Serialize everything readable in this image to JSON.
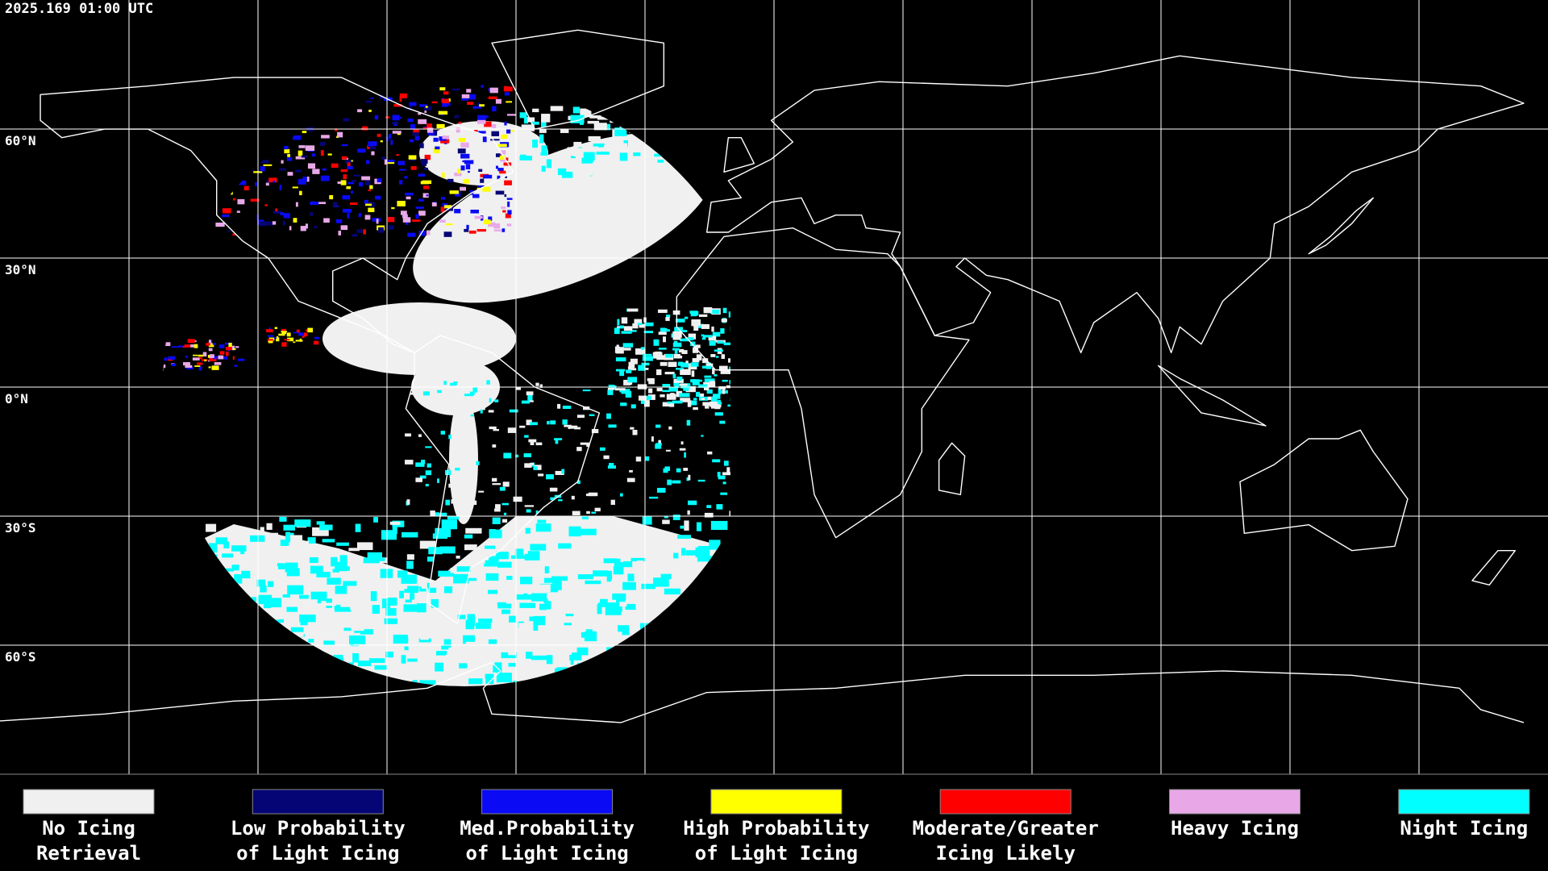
{
  "header": {
    "timestamp": "2025.169 01:00 UTC"
  },
  "map": {
    "latitude_labels": [
      "60°N",
      "30°N",
      "0°N",
      "30°S",
      "60°S"
    ]
  },
  "legend": {
    "items": [
      {
        "label": [
          "No Icing",
          "Retrieval"
        ],
        "color": "#f0f0f0"
      },
      {
        "label": [
          "Low Probability",
          "of Light Icing"
        ],
        "color": "#050575"
      },
      {
        "label": [
          "Med.Probability",
          "of Light Icing"
        ],
        "color": "#0a0af5"
      },
      {
        "label": [
          "High Probability",
          "of Light Icing"
        ],
        "color": "#ffff00"
      },
      {
        "label": [
          "Moderate/Greater",
          "Icing Likely"
        ],
        "color": "#ff0000"
      },
      {
        "label": [
          "Heavy Icing"
        ],
        "color": "#e8a8e8"
      },
      {
        "label": [
          "Night Icing"
        ],
        "color": "#00ffff"
      }
    ]
  }
}
